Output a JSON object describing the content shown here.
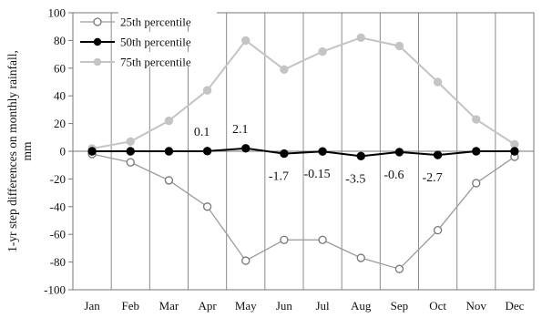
{
  "chart_data": {
    "type": "line",
    "ylabel": "1-yr step differences on monthly rainfall, mm",
    "xlabel": "",
    "ylim": [
      -100,
      100
    ],
    "ytick_step": 20,
    "grid": "vertical",
    "legend_position": "top-left",
    "categories": [
      "Jan",
      "Feb",
      "Mar",
      "Apr",
      "May",
      "Jun",
      "Jul",
      "Aug",
      "Sep",
      "Oct",
      "Nov",
      "Dec"
    ],
    "series": [
      {
        "name": "25th percentile",
        "marker": "open-circle",
        "line_color": "#9a9a9a",
        "marker_color": "#777777",
        "values": [
          -2,
          -8,
          -21,
          -40,
          -79,
          -64,
          -64,
          -77,
          -85,
          -57,
          -23,
          -4
        ]
      },
      {
        "name": "50th percentile",
        "marker": "filled-circle",
        "line_color": "#000000",
        "marker_color": "#000000",
        "values": [
          0,
          0,
          0,
          0.1,
          2.1,
          -1.7,
          -0.15,
          -3.5,
          -0.6,
          -2.7,
          0,
          0
        ]
      },
      {
        "name": "75th percentile",
        "marker": "filled-circle",
        "line_color": "#c4c4c4",
        "marker_color": "#c4c4c4",
        "values": [
          2,
          7,
          22,
          44,
          80,
          59,
          72,
          82,
          76,
          50,
          23,
          5
        ]
      }
    ],
    "annotations": [
      {
        "category": "Apr",
        "text": "0.1",
        "position": "above"
      },
      {
        "category": "May",
        "text": "2.1",
        "position": "above"
      },
      {
        "category": "Jun",
        "text": "-1.7",
        "position": "below"
      },
      {
        "category": "Jul",
        "text": "-0.15",
        "position": "below"
      },
      {
        "category": "Aug",
        "text": "-3.5",
        "position": "below"
      },
      {
        "category": "Sep",
        "text": "-0.6",
        "position": "below"
      },
      {
        "category": "Oct",
        "text": "-2.7",
        "position": "below"
      }
    ]
  }
}
